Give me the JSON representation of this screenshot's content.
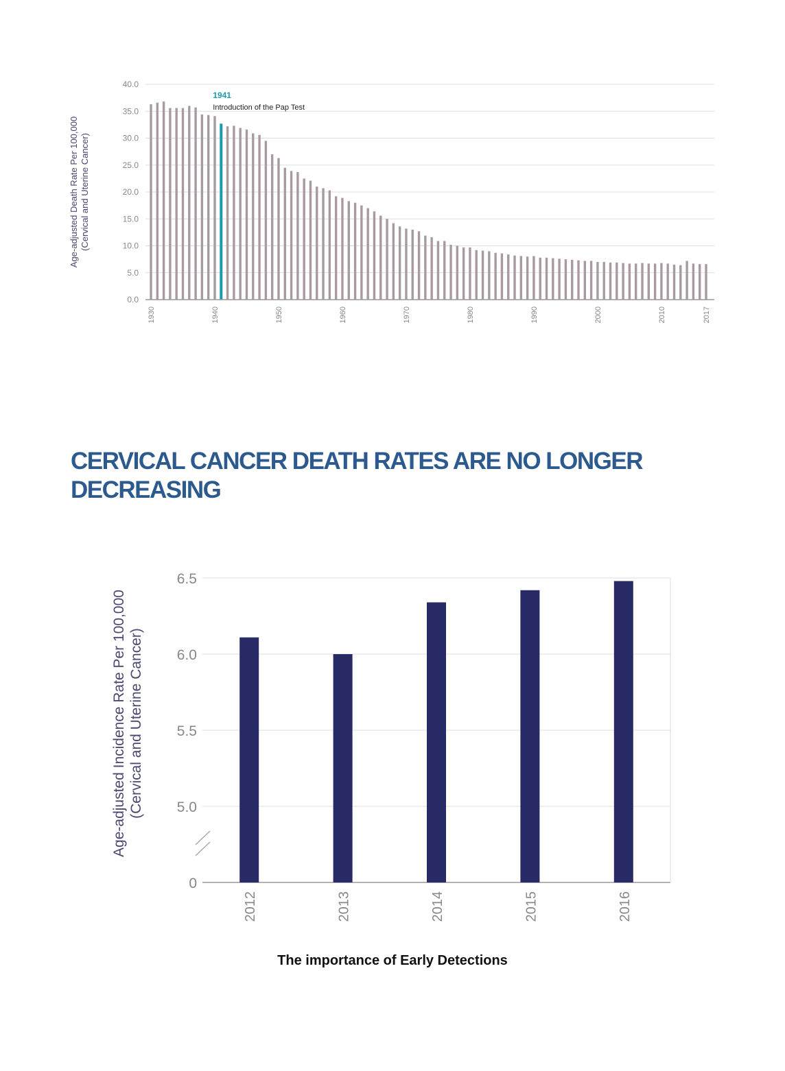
{
  "chart_data": [
    {
      "type": "bar",
      "ylabel": "Age-adjusted Death Rate Per 100,000",
      "ylabel2": "(Cervical and Uterine Cancer)",
      "ylim": [
        0,
        40
      ],
      "yticks": [
        "0.0",
        "5.0",
        "10.0",
        "15.0",
        "20.0",
        "25.0",
        "30.0",
        "35.0",
        "40.0"
      ],
      "xtick_labels": [
        "1930",
        "1940",
        "1950",
        "1960",
        "1970",
        "1980",
        "1990",
        "2000",
        "2010",
        "2017"
      ],
      "x": [
        1930,
        1931,
        1932,
        1933,
        1934,
        1935,
        1936,
        1937,
        1938,
        1939,
        1940,
        1941,
        1942,
        1943,
        1944,
        1945,
        1946,
        1947,
        1948,
        1949,
        1950,
        1951,
        1952,
        1953,
        1954,
        1955,
        1956,
        1957,
        1958,
        1959,
        1960,
        1961,
        1962,
        1963,
        1964,
        1965,
        1966,
        1967,
        1968,
        1969,
        1970,
        1971,
        1972,
        1973,
        1974,
        1975,
        1976,
        1977,
        1978,
        1979,
        1980,
        1981,
        1982,
        1983,
        1984,
        1985,
        1986,
        1987,
        1988,
        1989,
        1990,
        1991,
        1992,
        1993,
        1994,
        1995,
        1996,
        1997,
        1998,
        1999,
        2000,
        2001,
        2002,
        2003,
        2004,
        2005,
        2006,
        2007,
        2008,
        2009,
        2010,
        2011,
        2012,
        2013,
        2014,
        2015,
        2016,
        2017
      ],
      "values": [
        36.3,
        36.6,
        36.8,
        35.6,
        35.6,
        35.6,
        36.0,
        35.7,
        34.4,
        34.3,
        34.1,
        32.7,
        32.2,
        32.3,
        31.9,
        31.6,
        30.9,
        30.6,
        29.5,
        27.0,
        26.3,
        24.5,
        23.9,
        23.7,
        22.5,
        22.1,
        21.0,
        20.7,
        20.3,
        19.2,
        18.9,
        18.3,
        18.0,
        17.5,
        17.0,
        16.4,
        15.6,
        15.0,
        14.2,
        13.6,
        13.2,
        13.0,
        12.7,
        11.9,
        11.6,
        10.9,
        10.9,
        10.2,
        10.0,
        9.7,
        9.7,
        9.2,
        9.1,
        9.0,
        8.7,
        8.6,
        8.4,
        8.2,
        8.1,
        8.0,
        8.1,
        7.8,
        7.8,
        7.7,
        7.6,
        7.5,
        7.4,
        7.3,
        7.2,
        7.2,
        7.0,
        7.0,
        6.9,
        6.9,
        6.8,
        6.7,
        6.7,
        6.8,
        6.7,
        6.7,
        6.8,
        6.7,
        6.5,
        6.4,
        7.2,
        6.7,
        6.6,
        6.6
      ],
      "highlight": {
        "year": 1941,
        "color": "#1a9ba8",
        "label_year": "1941",
        "label_text": "Introduction of the Pap Test"
      },
      "bar_color": "#a99aa2",
      "grid": true
    },
    {
      "type": "bar",
      "ylabel": "Age-adjusted Incidence Rate Per 100,000",
      "ylabel2": "(Cervical and Uterine Cancer)",
      "categories": [
        "2012",
        "2013",
        "2014",
        "2015",
        "2016"
      ],
      "values": [
        6.11,
        6.0,
        6.34,
        6.42,
        6.48
      ],
      "ylim": [
        5.0,
        6.5
      ],
      "yticks": [
        "5.0",
        "5.5",
        "6.0",
        "6.5"
      ],
      "zero_label": "0",
      "axis_break": true,
      "bar_color": "#282a66",
      "grid": true
    }
  ],
  "headline": "CERVICAL CANCER DEATH RATES ARE NO LONGER DECREASING",
  "caption": "The importance of Early Detections",
  "colors": {
    "headline": "#2d5a8e",
    "axis_text": "#4a4870",
    "tick_text": "#888888",
    "grid": "#dddddd"
  }
}
